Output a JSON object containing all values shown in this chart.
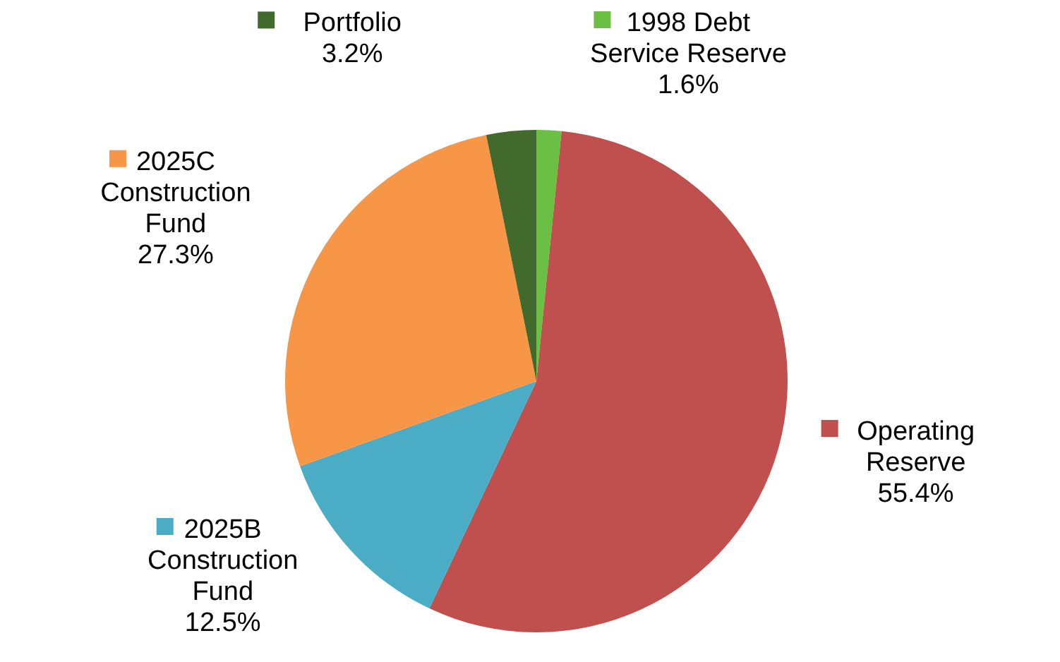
{
  "chart_data": {
    "type": "pie",
    "categories": [
      "1998 Debt Service Reserve",
      "Operating Reserve",
      "2025B Construction Fund",
      "2025C Construction Fund",
      "Portfolio"
    ],
    "values": [
      1.6,
      55.4,
      12.5,
      27.3,
      3.2
    ],
    "colors": [
      "#6cbf45",
      "#c0504d",
      "#4bacc6",
      "#f79646",
      "#426a2d"
    ],
    "legend": "right",
    "value_labels": [
      "1.6%",
      "55.4%",
      "12.5%",
      "27.3%",
      "3.2%"
    ]
  }
}
